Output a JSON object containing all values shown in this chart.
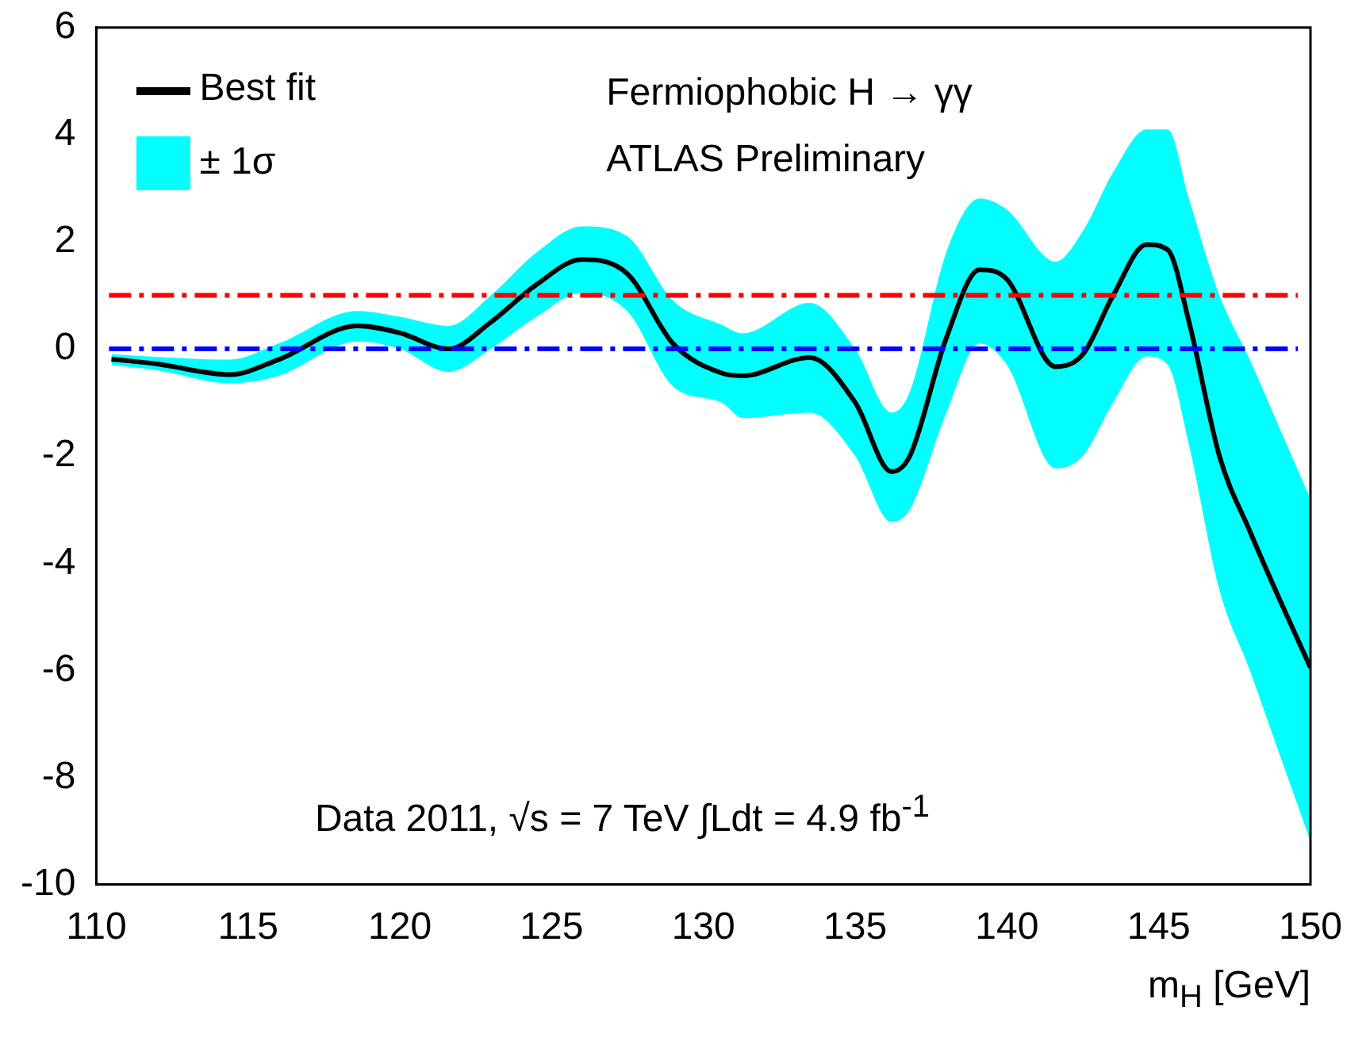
{
  "chart_data": {
    "type": "line",
    "annotations": [
      "Fermiophobic H → γγ",
      "ATLAS Preliminary",
      "Data 2011,  √s = 7 TeV  ∫Ldt = 4.9 fb$^{-1}$",
      "± 1σ"
    ],
    "xlabel": "m$_{H}$ [GeV]",
    "x": [
      110.5,
      112,
      114.4,
      116,
      118.6,
      120,
      121.6,
      123,
      124.5,
      126,
      127.5,
      129,
      130.6,
      131.3,
      133.5,
      135,
      136.2,
      136.8,
      138,
      139.1,
      140,
      141.6,
      142.5,
      143.5,
      144.6,
      145.3,
      146,
      147,
      148,
      149,
      150
    ],
    "series": [
      {
        "name": "Best fit",
        "color": "#000000",
        "values": [
          -0.19,
          -0.28,
          -0.48,
          -0.2,
          0.43,
          0.3,
          0.0,
          0.5,
          1.2,
          1.67,
          1.4,
          0.1,
          -0.45,
          -0.5,
          -0.16,
          -1.0,
          -2.29,
          -2.0,
          0.2,
          1.48,
          1.3,
          -0.33,
          -0.1,
          1.0,
          1.95,
          1.85,
          0.5,
          -2.0,
          -3.4,
          -4.7,
          -5.95
        ],
        "upper": [
          -0.1,
          -0.15,
          -0.2,
          0.1,
          0.71,
          0.6,
          0.43,
          1.0,
          1.8,
          2.29,
          2.1,
          0.9,
          0.45,
          0.29,
          0.86,
          0.0,
          -1.19,
          -0.8,
          1.8,
          2.81,
          2.6,
          1.63,
          2.2,
          3.3,
          4.1,
          4.1,
          2.8,
          1.0,
          -0.2,
          -1.5,
          -2.8
        ],
        "lower": [
          -0.3,
          -0.4,
          -0.64,
          -0.5,
          0.14,
          0.0,
          -0.43,
          0.0,
          0.6,
          1.05,
          0.7,
          -0.7,
          -1.0,
          -1.29,
          -1.19,
          -2.0,
          -3.23,
          -3.0,
          -1.2,
          0.1,
          -0.3,
          -2.23,
          -2.0,
          -1.0,
          -0.14,
          -0.3,
          -1.8,
          -4.5,
          -6.0,
          -7.6,
          -9.19
        ]
      }
    ],
    "xlim": [
      110,
      150
    ],
    "xticks": [
      110,
      115,
      120,
      125,
      130,
      135,
      140,
      145,
      150
    ],
    "ylim": [
      -10,
      6
    ],
    "yticks": [
      -10,
      -8,
      -6,
      -4,
      -2,
      0,
      2,
      4,
      6
    ],
    "ref_lines": [
      {
        "axis": "y",
        "value": 1,
        "color": "#ff0000",
        "line_style": "dashed"
      },
      {
        "axis": "y",
        "value": 0,
        "color": "#0000ff",
        "line_style": "dashed"
      }
    ],
    "grid": false,
    "legend": "top left",
    "marker": "none",
    "line_style": "solid"
  }
}
